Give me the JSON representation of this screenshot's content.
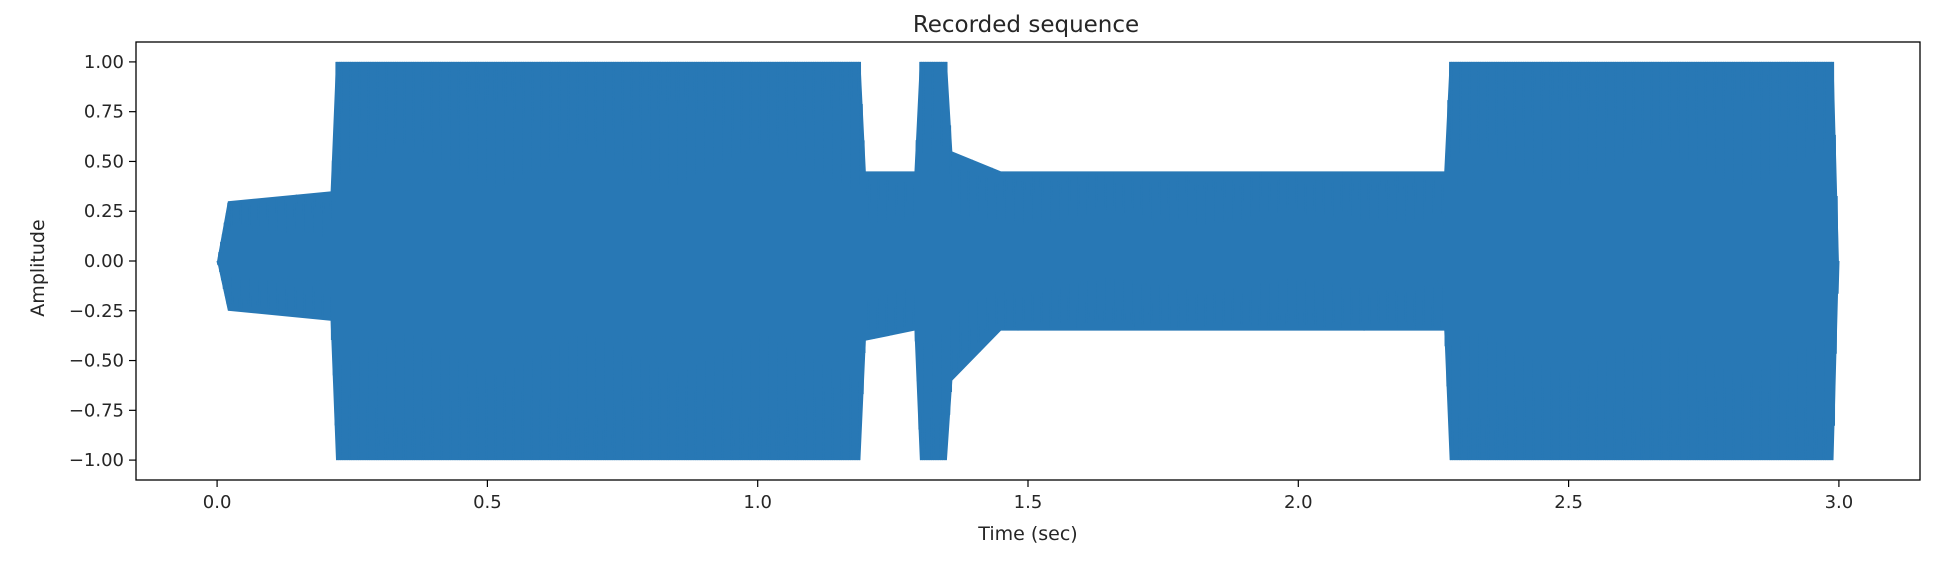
{
  "chart_data": {
    "type": "line",
    "title": "Recorded sequence",
    "xlabel": "Time (sec)",
    "ylabel": "Amplitude",
    "xlim": [
      -0.15,
      3.15
    ],
    "ylim": [
      -1.1,
      1.1
    ],
    "xticks": [
      0.0,
      0.5,
      1.0,
      1.5,
      2.0,
      2.5,
      3.0
    ],
    "xtick_labels": [
      "0.0",
      "0.5",
      "1.0",
      "1.5",
      "2.0",
      "2.5",
      "3.0"
    ],
    "yticks": [
      1.0,
      0.75,
      0.5,
      0.25,
      0.0,
      -0.25,
      -0.5,
      -0.75,
      -1.0
    ],
    "ytick_labels": [
      "1.00",
      "0.75",
      "0.50",
      "0.25",
      "0.00",
      "−0.25",
      "−0.50",
      "−0.75",
      "−1.00"
    ],
    "grid": false,
    "line_color": "#2878b5",
    "series": [
      {
        "envelope": {
          "time": [
            0.0,
            0.02,
            0.21,
            0.22,
            1.19,
            1.2,
            1.29,
            1.3,
            1.35,
            1.36,
            1.45,
            2.0,
            2.27,
            2.28,
            2.99,
            3.0
          ],
          "upper": [
            0.0,
            0.3,
            0.35,
            1.0,
            1.0,
            0.45,
            0.45,
            1.0,
            1.0,
            0.55,
            0.45,
            0.45,
            0.45,
            1.0,
            1.0,
            0.0
          ],
          "lower": [
            0.0,
            -0.25,
            -0.3,
            -1.0,
            -1.0,
            -0.4,
            -0.35,
            -1.0,
            -1.0,
            -0.6,
            -0.35,
            -0.35,
            -0.35,
            -1.0,
            -1.0,
            0.0
          ]
        }
      }
    ]
  }
}
